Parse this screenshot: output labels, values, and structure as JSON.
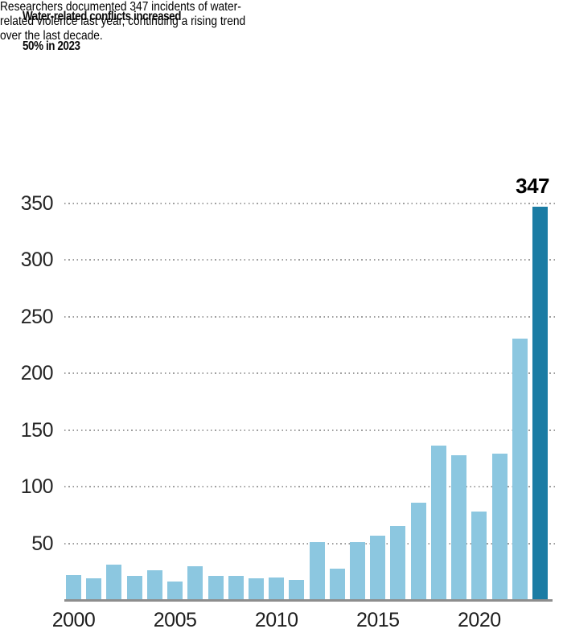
{
  "header": {
    "title_lines": [
      "Water-related conflicts increased",
      "50% in 2023"
    ],
    "subtitle_lines": [
      "Researchers documented 347 incidents of water-",
      "related violence last year, continuing a rising trend",
      "over the last decade."
    ]
  },
  "chart_data": {
    "type": "bar",
    "title": "Water-related conflicts increased 50% in 2023",
    "xlabel": "",
    "ylabel": "",
    "categories": [
      2000,
      2001,
      2002,
      2003,
      2004,
      2005,
      2006,
      2007,
      2008,
      2009,
      2010,
      2011,
      2012,
      2013,
      2014,
      2015,
      2016,
      2017,
      2018,
      2019,
      2020,
      2021,
      2022,
      2023
    ],
    "values": [
      22,
      19,
      31,
      21,
      26,
      16,
      30,
      21,
      21,
      19,
      20,
      18,
      51,
      28,
      51,
      57,
      65,
      86,
      136,
      128,
      78,
      129,
      231,
      347
    ],
    "highlight_category": 2023,
    "annotation": {
      "text": "347",
      "category": 2023
    },
    "ylim": [
      0,
      350
    ],
    "yticks": [
      50,
      100,
      150,
      200,
      250,
      300,
      350
    ],
    "xticks": [
      2000,
      2005,
      2010,
      2015,
      2020
    ],
    "grid": "horizontal-dotted",
    "legend": "none",
    "colors": {
      "bar": "#8cc7e0",
      "highlight": "#1b7ca4",
      "grid": "#9f9f9f",
      "axis": "#8d8d8d",
      "tick_text": "#252525",
      "title": "#0a0a0a",
      "subtitle": "#8b8b8b",
      "background": "#ffffff"
    }
  }
}
